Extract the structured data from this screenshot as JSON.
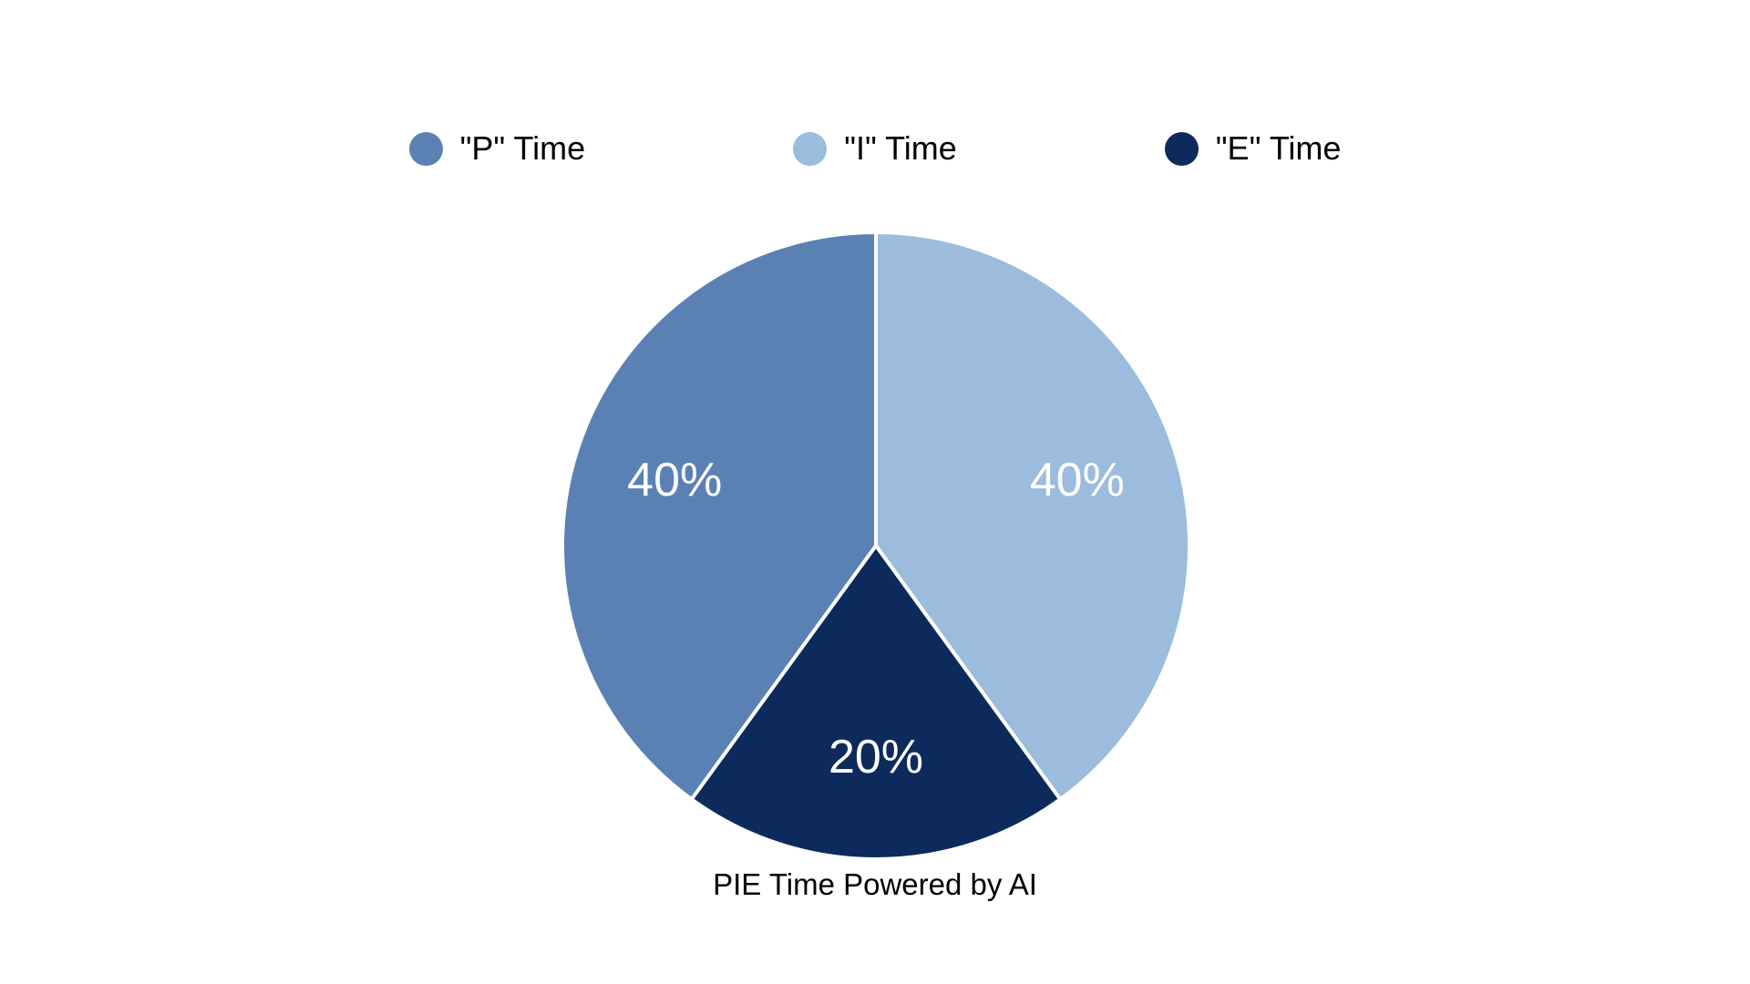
{
  "page": {
    "background_color": "#ffffff"
  },
  "chart_data": {
    "type": "pie",
    "title": "PIE Time Powered by AI",
    "categories": [
      "\"P\" Time",
      "\"I\" Time",
      "\"E\" Time"
    ],
    "values": [
      40,
      40,
      20
    ],
    "slice_labels": [
      "40%",
      "40%",
      "20%"
    ],
    "colors": [
      "#5b81b4",
      "#9bbcdc",
      "#0c2b5c"
    ],
    "legend": {
      "position": "top",
      "entries": [
        "\"P\" Time",
        "\"I\" Time",
        "\"E\" Time"
      ]
    },
    "layout": {
      "start_angle_deg": 216,
      "clockwise": true,
      "label_radius_ratio": 0.675,
      "divider_color": "#ffffff",
      "divider_width": 4,
      "slice_label_color": "#ffffff"
    }
  },
  "caption": "PIE Time Powered by AI"
}
